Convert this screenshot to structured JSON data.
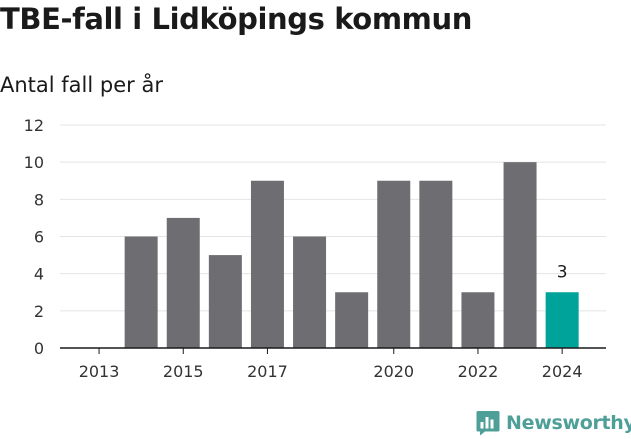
{
  "title": "TBE-fall i Lidköpings kommun",
  "subtitle": "Antal fall per år",
  "brand": "Newsworthy",
  "colors": {
    "bar": "#6e6d72",
    "highlight": "#00a39a",
    "grid": "#e4e4e4",
    "axis": "#1a1a1a",
    "brand": "#4f9f99"
  },
  "icons": {
    "brand": "bar-chart-speech-bubble-icon"
  },
  "chart_data": {
    "type": "bar",
    "title": "TBE-fall i Lidköpings kommun",
    "subtitle": "Antal fall per år",
    "xlabel": "",
    "ylabel": "",
    "categories": [
      2013,
      2014,
      2015,
      2016,
      2017,
      2018,
      2019,
      2020,
      2021,
      2022,
      2023,
      2024
    ],
    "values": [
      0,
      6,
      7,
      5,
      9,
      6,
      3,
      9,
      9,
      3,
      10,
      3
    ],
    "x_tick_labels": [
      "2013",
      "2015",
      "2017",
      "2020",
      "2022",
      "2024"
    ],
    "ylim": [
      0,
      12
    ],
    "y_ticks": [
      0,
      2,
      4,
      6,
      8,
      10,
      12
    ],
    "grid": true,
    "legend": "none",
    "highlight_category": 2024,
    "annotations": [
      {
        "category": 2024,
        "text": "3"
      }
    ]
  }
}
